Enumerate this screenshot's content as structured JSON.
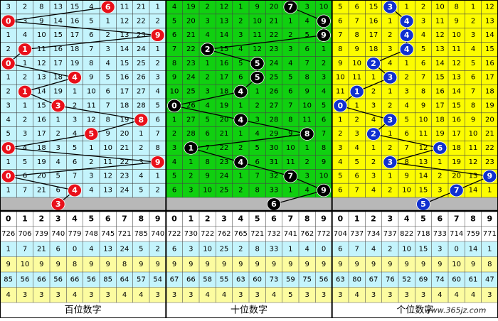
{
  "columns": [
    0,
    1,
    2,
    3,
    4,
    5,
    6,
    7,
    8,
    9
  ],
  "watermark": "www.365jz.com",
  "panels": [
    {
      "label": "百位数字",
      "background": "#c4f4fc",
      "ball_color": "#e8101a",
      "grid": [
        [
          3,
          2,
          8,
          13,
          15,
          4,
          null,
          11,
          21,
          1
        ],
        [
          null,
          3,
          9,
          14,
          16,
          5,
          1,
          12,
          22,
          2
        ],
        [
          1,
          4,
          10,
          15,
          17,
          6,
          2,
          13,
          23,
          null
        ],
        [
          2,
          null,
          11,
          16,
          18,
          7,
          3,
          14,
          24,
          1
        ],
        [
          null,
          1,
          12,
          17,
          19,
          8,
          4,
          15,
          25,
          2
        ],
        [
          1,
          2,
          13,
          18,
          null,
          9,
          5,
          16,
          26,
          3
        ],
        [
          2,
          null,
          14,
          19,
          1,
          10,
          6,
          17,
          27,
          4
        ],
        [
          3,
          1,
          15,
          null,
          2,
          11,
          7,
          18,
          28,
          5
        ],
        [
          4,
          2,
          16,
          1,
          3,
          12,
          8,
          19,
          null,
          6
        ],
        [
          5,
          3,
          17,
          2,
          4,
          null,
          9,
          20,
          1,
          7
        ],
        [
          null,
          4,
          18,
          3,
          5,
          1,
          10,
          21,
          2,
          8
        ],
        [
          1,
          5,
          19,
          4,
          6,
          2,
          11,
          22,
          3,
          null
        ],
        [
          null,
          6,
          20,
          5,
          7,
          3,
          12,
          23,
          4,
          1
        ],
        [
          1,
          7,
          21,
          6,
          null,
          4,
          13,
          24,
          5,
          2
        ]
      ],
      "hits": [
        6,
        0,
        9,
        1,
        0,
        4,
        1,
        3,
        8,
        5,
        0,
        9,
        0,
        4
      ],
      "next": 3,
      "stats": [
        [
          726,
          706,
          739,
          740,
          779,
          748,
          745,
          721,
          785,
          740
        ],
        [
          1,
          7,
          21,
          6,
          0,
          4,
          13,
          24,
          5,
          2
        ],
        [
          9,
          10,
          9,
          9,
          8,
          9,
          9,
          8,
          9,
          9
        ],
        [
          85,
          56,
          66,
          56,
          66,
          56,
          85,
          64,
          57,
          54
        ],
        [
          4,
          3,
          3,
          3,
          4,
          3,
          3,
          4,
          4,
          3
        ]
      ]
    },
    {
      "label": "十位数字",
      "background": "#10d010",
      "ball_color": "#000000",
      "grid": [
        [
          4,
          19,
          2,
          12,
          1,
          9,
          20,
          null,
          3,
          10
        ],
        [
          5,
          20,
          3,
          13,
          2,
          10,
          21,
          1,
          4,
          null
        ],
        [
          6,
          21,
          4,
          14,
          3,
          11,
          22,
          2,
          5,
          null
        ],
        [
          7,
          22,
          null,
          15,
          4,
          12,
          23,
          3,
          6,
          1
        ],
        [
          8,
          23,
          1,
          16,
          5,
          null,
          24,
          4,
          7,
          2
        ],
        [
          9,
          24,
          2,
          17,
          6,
          null,
          25,
          5,
          8,
          3
        ],
        [
          10,
          25,
          3,
          18,
          null,
          1,
          26,
          6,
          9,
          4
        ],
        [
          null,
          26,
          4,
          19,
          1,
          2,
          27,
          7,
          10,
          5
        ],
        [
          1,
          27,
          5,
          20,
          null,
          3,
          28,
          8,
          11,
          6
        ],
        [
          2,
          28,
          6,
          21,
          1,
          4,
          29,
          9,
          null,
          7
        ],
        [
          3,
          null,
          7,
          22,
          2,
          5,
          30,
          10,
          1,
          8
        ],
        [
          4,
          1,
          8,
          23,
          null,
          6,
          31,
          11,
          2,
          9
        ],
        [
          5,
          2,
          9,
          24,
          1,
          7,
          32,
          null,
          3,
          10
        ],
        [
          6,
          3,
          10,
          25,
          2,
          8,
          33,
          1,
          4,
          null
        ]
      ],
      "hits": [
        7,
        9,
        9,
        2,
        5,
        5,
        4,
        0,
        4,
        8,
        1,
        4,
        7,
        9
      ],
      "next": 6,
      "stats": [
        [
          722,
          730,
          722,
          762,
          765,
          721,
          732,
          741,
          762,
          772
        ],
        [
          6,
          3,
          10,
          25,
          2,
          8,
          33,
          1,
          4,
          0
        ],
        [
          9,
          9,
          9,
          9,
          9,
          9,
          9,
          9,
          9,
          9
        ],
        [
          67,
          66,
          58,
          55,
          63,
          60,
          73,
          59,
          75,
          56
        ],
        [
          3,
          3,
          4,
          4,
          3,
          3,
          4,
          5,
          3,
          3
        ]
      ]
    },
    {
      "label": "个位数字",
      "background": "#fcfc00",
      "ball_color": "#1030d0",
      "grid": [
        [
          5,
          6,
          15,
          null,
          1,
          2,
          10,
          8,
          1,
          12
        ],
        [
          6,
          7,
          16,
          1,
          null,
          3,
          11,
          9,
          2,
          13
        ],
        [
          7,
          8,
          17,
          2,
          null,
          4,
          12,
          10,
          3,
          14
        ],
        [
          8,
          9,
          18,
          3,
          null,
          5,
          13,
          11,
          4,
          15
        ],
        [
          9,
          10,
          null,
          4,
          1,
          6,
          14,
          12,
          5,
          16
        ],
        [
          10,
          11,
          1,
          null,
          2,
          7,
          15,
          13,
          6,
          17
        ],
        [
          11,
          null,
          2,
          1,
          3,
          8,
          16,
          14,
          7,
          18
        ],
        [
          null,
          1,
          3,
          2,
          4,
          9,
          17,
          15,
          8,
          19
        ],
        [
          1,
          2,
          4,
          null,
          5,
          10,
          18,
          16,
          9,
          20
        ],
        [
          2,
          3,
          null,
          1,
          6,
          11,
          19,
          17,
          10,
          21
        ],
        [
          3,
          4,
          1,
          2,
          7,
          12,
          null,
          18,
          11,
          22
        ],
        [
          4,
          5,
          2,
          null,
          8,
          13,
          1,
          19,
          12,
          23
        ],
        [
          5,
          6,
          3,
          1,
          9,
          14,
          2,
          20,
          13,
          null
        ],
        [
          6,
          7,
          4,
          2,
          10,
          15,
          3,
          null,
          14,
          1
        ]
      ],
      "hits": [
        3,
        4,
        4,
        4,
        2,
        3,
        1,
        0,
        3,
        2,
        6,
        3,
        9,
        7
      ],
      "next": 5,
      "stats": [
        [
          704,
          737,
          734,
          737,
          822,
          718,
          733,
          714,
          759,
          771
        ],
        [
          6,
          7,
          4,
          2,
          10,
          15,
          3,
          0,
          14,
          1
        ],
        [
          9,
          9,
          9,
          9,
          9,
          9,
          9,
          10,
          9,
          8
        ],
        [
          63,
          80,
          67,
          76,
          52,
          69,
          74,
          60,
          61,
          47
        ],
        [
          3,
          4,
          3,
          3,
          3,
          3,
          4,
          4,
          4,
          3
        ]
      ]
    }
  ]
}
